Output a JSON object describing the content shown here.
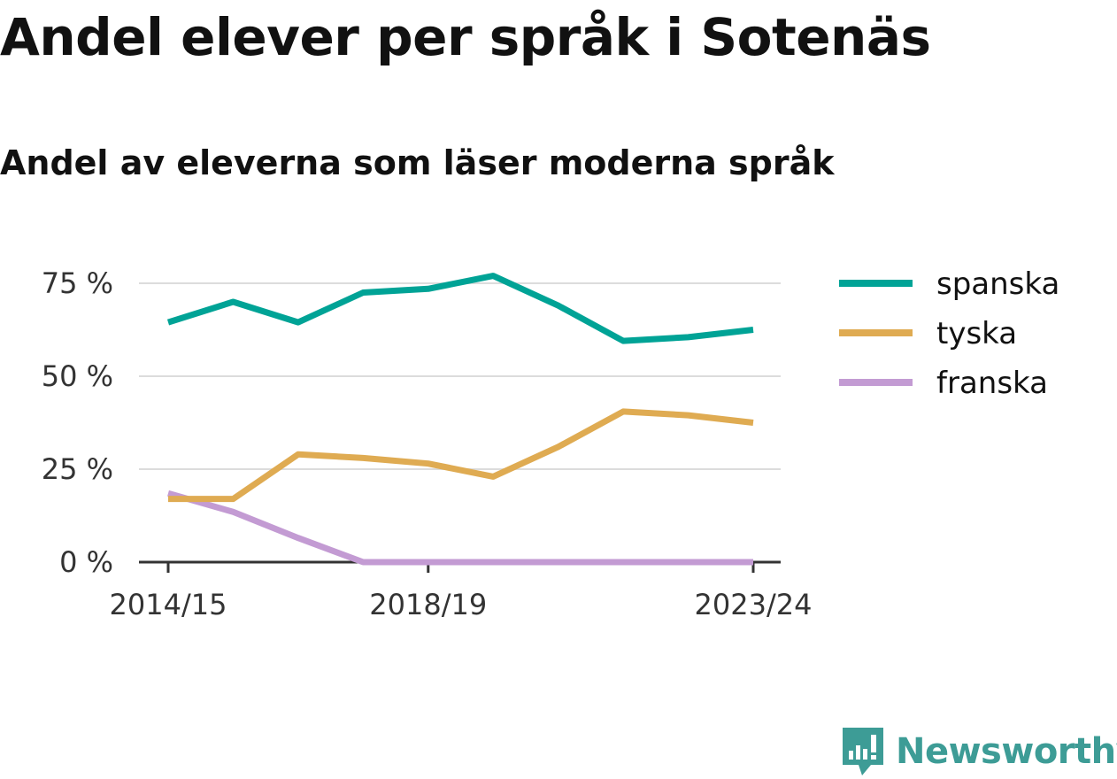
{
  "title": "Andel elever per språk i Sotenäs",
  "subtitle": "Andel av eleverna som läser moderna språk",
  "brand": {
    "name": "Newsworthy",
    "icon": "newsworthy-logo-icon",
    "color": "#3d9c96"
  },
  "chart_data": {
    "type": "line",
    "title": "Andel elever per språk i Sotenäs",
    "subtitle": "Andel av eleverna som läser moderna språk",
    "xlabel": "",
    "ylabel": "",
    "x": [
      "2014/15",
      "2015/16",
      "2016/17",
      "2017/18",
      "2018/19",
      "2019/20",
      "2020/21",
      "2021/22",
      "2022/23",
      "2023/24"
    ],
    "x_tick_labels": [
      "2014/15",
      "2018/19",
      "2023/24"
    ],
    "y_ticks": [
      0,
      25,
      50,
      75
    ],
    "y_tick_labels": [
      "0 %",
      "25 %",
      "50 %",
      "75 %"
    ],
    "ylim": [
      0,
      80
    ],
    "grid": "horizontal",
    "legend_position": "right",
    "series": [
      {
        "name": "spanska",
        "color": "#00a396",
        "values": [
          64.5,
          70,
          64.5,
          72.5,
          73.5,
          77,
          69,
          59.5,
          60.5,
          62.5
        ]
      },
      {
        "name": "tyska",
        "color": "#dfab52",
        "values": [
          17,
          17,
          29,
          28,
          26.5,
          23,
          31,
          40.5,
          39.5,
          37.5
        ]
      },
      {
        "name": "franska",
        "color": "#c39bd3",
        "values": [
          18.5,
          13.5,
          6.5,
          0,
          0,
          0,
          0,
          0,
          0,
          0
        ]
      }
    ]
  }
}
